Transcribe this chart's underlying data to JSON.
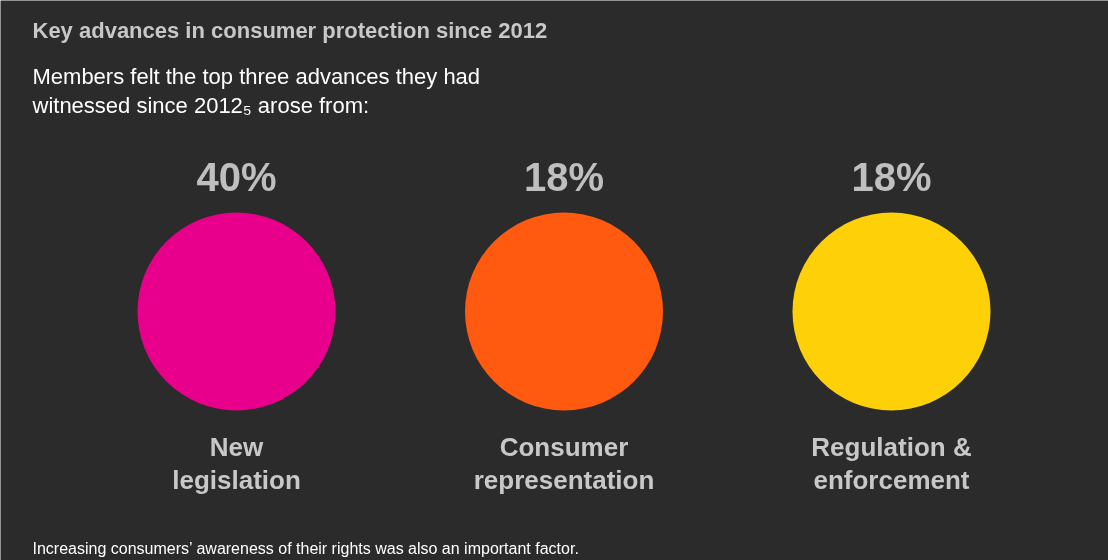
{
  "chart_data": {
    "type": "other",
    "title": "Key advances in consumer protection since 2012",
    "subtitle": "Members felt the top three advances they had witnessed since 2012₅ arose from:",
    "categories": [
      "New legislation",
      "Consumer representation",
      "Regulation & enforcement"
    ],
    "values": [
      40,
      18,
      18
    ],
    "value_labels": [
      "40%",
      "18%",
      "18%"
    ],
    "colors": [
      "#e8008c",
      "#ff5a0f",
      "#fdd008"
    ],
    "annotations": [
      "Increasing consumers’ awareness of their rights was also an important factor."
    ]
  }
}
